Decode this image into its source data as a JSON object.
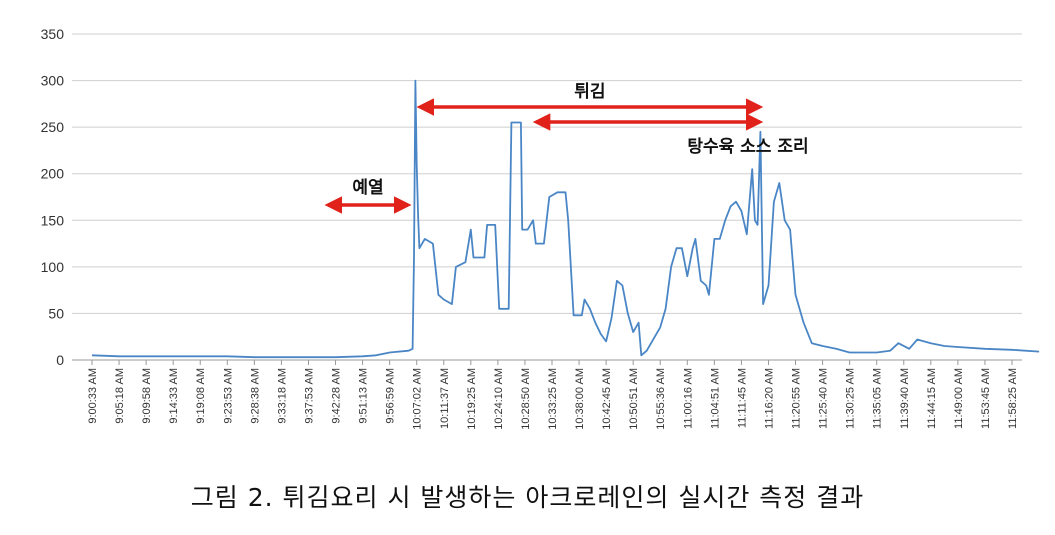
{
  "caption": "그림 2. 튀김요리 시 발생하는 아크로레인의 실시간 측정 결과",
  "chart_data": {
    "type": "line",
    "ylim": [
      0,
      350
    ],
    "yticks": [
      0,
      50,
      100,
      150,
      200,
      250,
      300,
      350
    ],
    "grid": true,
    "xlabels": [
      "9:00:33 AM",
      "9:05:18 AM",
      "9:09:58 AM",
      "9:14:33 AM",
      "9:19:08 AM",
      "9:23:53 AM",
      "9:28:38 AM",
      "9:33:18 AM",
      "9:37:53 AM",
      "9:42:28 AM",
      "9:51:13 AM",
      "9:56:59 AM",
      "10:07:02 AM",
      "10:11:37 AM",
      "10:19:25 AM",
      "10:24:10 AM",
      "10:28:50 AM",
      "10:33:25 AM",
      "10:38:00 AM",
      "10:42:45 AM",
      "10:50:51 AM",
      "10:55:36 AM",
      "11:00:16 AM",
      "11:04:51 AM",
      "11:11:45 AM",
      "11:16:20 AM",
      "11:20:55 AM",
      "11:25:40 AM",
      "11:30:25 AM",
      "11:35:05 AM",
      "11:39:40 AM",
      "11:44:15 AM",
      "11:49:00 AM",
      "11:53:45 AM",
      "11:58:25 AM"
    ],
    "series": [
      {
        "color": "#4a86c5",
        "points": [
          [
            0,
            5
          ],
          [
            1,
            4
          ],
          [
            2,
            4
          ],
          [
            3,
            4
          ],
          [
            4,
            4
          ],
          [
            5,
            4
          ],
          [
            6,
            3
          ],
          [
            7,
            3
          ],
          [
            8,
            3
          ],
          [
            9,
            3
          ],
          [
            10,
            4
          ],
          [
            10.5,
            5
          ],
          [
            11,
            8
          ],
          [
            11.7,
            10
          ],
          [
            11.85,
            12
          ],
          [
            11.9,
            110
          ],
          [
            11.95,
            300
          ],
          [
            12.0,
            210
          ],
          [
            12.05,
            155
          ],
          [
            12.1,
            120
          ],
          [
            12.3,
            130
          ],
          [
            12.6,
            125
          ],
          [
            12.8,
            70
          ],
          [
            13.0,
            65
          ],
          [
            13.3,
            60
          ],
          [
            13.45,
            100
          ],
          [
            13.8,
            105
          ],
          [
            14.0,
            140
          ],
          [
            14.1,
            110
          ],
          [
            14.5,
            110
          ],
          [
            14.6,
            145
          ],
          [
            14.9,
            145
          ],
          [
            15.05,
            55
          ],
          [
            15.4,
            55
          ],
          [
            15.5,
            255
          ],
          [
            15.85,
            255
          ],
          [
            15.9,
            140
          ],
          [
            16.1,
            140
          ],
          [
            16.3,
            150
          ],
          [
            16.4,
            125
          ],
          [
            16.7,
            125
          ],
          [
            16.9,
            175
          ],
          [
            17.2,
            180
          ],
          [
            17.5,
            180
          ],
          [
            17.6,
            150
          ],
          [
            17.8,
            48
          ],
          [
            18.1,
            48
          ],
          [
            18.2,
            65
          ],
          [
            18.4,
            55
          ],
          [
            18.6,
            40
          ],
          [
            18.8,
            28
          ],
          [
            19.0,
            20
          ],
          [
            19.2,
            45
          ],
          [
            19.4,
            85
          ],
          [
            19.6,
            80
          ],
          [
            19.8,
            50
          ],
          [
            20.0,
            30
          ],
          [
            20.2,
            40
          ],
          [
            20.3,
            5
          ],
          [
            20.5,
            10
          ],
          [
            20.8,
            25
          ],
          [
            21.0,
            35
          ],
          [
            21.2,
            55
          ],
          [
            21.4,
            100
          ],
          [
            21.6,
            120
          ],
          [
            21.8,
            120
          ],
          [
            22.0,
            90
          ],
          [
            22.2,
            120
          ],
          [
            22.3,
            130
          ],
          [
            22.5,
            85
          ],
          [
            22.7,
            80
          ],
          [
            22.8,
            70
          ],
          [
            23.0,
            130
          ],
          [
            23.2,
            130
          ],
          [
            23.4,
            150
          ],
          [
            23.6,
            165
          ],
          [
            23.8,
            170
          ],
          [
            24.0,
            160
          ],
          [
            24.2,
            135
          ],
          [
            24.4,
            205
          ],
          [
            24.5,
            150
          ],
          [
            24.6,
            145
          ],
          [
            24.7,
            245
          ],
          [
            24.8,
            60
          ],
          [
            25.0,
            80
          ],
          [
            25.2,
            170
          ],
          [
            25.4,
            190
          ],
          [
            25.6,
            150
          ],
          [
            25.8,
            140
          ],
          [
            26.0,
            70
          ],
          [
            26.3,
            40
          ],
          [
            26.6,
            18
          ],
          [
            27.0,
            15
          ],
          [
            27.5,
            12
          ],
          [
            28,
            8
          ],
          [
            29,
            8
          ],
          [
            29.5,
            10
          ],
          [
            29.8,
            18
          ],
          [
            30.2,
            12
          ],
          [
            30.5,
            22
          ],
          [
            31,
            18
          ],
          [
            31.5,
            15
          ],
          [
            32,
            14
          ],
          [
            33,
            12
          ],
          [
            34,
            11
          ],
          [
            35,
            9
          ]
        ]
      }
    ],
    "annotations": [
      {
        "label": "예열",
        "x_start": 8.5,
        "x_end": 11.9
      },
      {
        "label": "튀김",
        "x_start": 11.9,
        "x_end": 24.9
      },
      {
        "label": "탕수육 소스 조리",
        "x_start": 16.2,
        "x_end": 24.9
      }
    ]
  }
}
